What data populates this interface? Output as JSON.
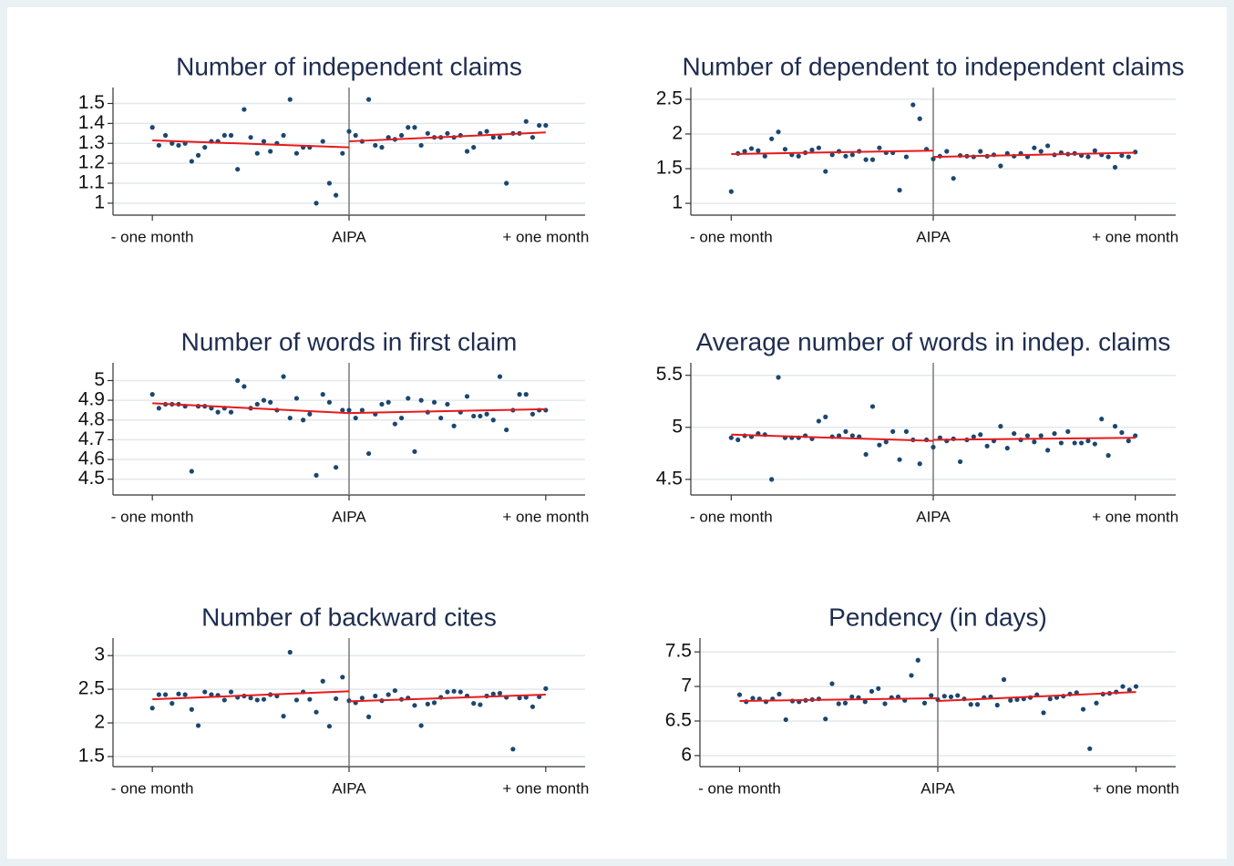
{
  "chart_data": [
    {
      "type": "scatter",
      "title": "Number of independent claims",
      "x": [
        -30,
        -29,
        -28,
        -27,
        -26,
        -25,
        -24,
        -23,
        -22,
        -21,
        -20,
        -19,
        -18,
        -17,
        -16,
        -15,
        -14,
        -13,
        -12,
        -11,
        -10,
        -9,
        -8,
        -7,
        -6,
        -5,
        -4,
        -3,
        -2,
        -1,
        0,
        1,
        2,
        3,
        4,
        5,
        6,
        7,
        8,
        9,
        10,
        11,
        12,
        13,
        14,
        15,
        16,
        17,
        18,
        19,
        20,
        21,
        22,
        23,
        24,
        25,
        26,
        27,
        28,
        29,
        30
      ],
      "values": [
        1.38,
        1.29,
        1.34,
        1.3,
        1.29,
        1.3,
        1.21,
        1.24,
        1.28,
        1.31,
        1.31,
        1.34,
        1.34,
        1.17,
        1.47,
        1.33,
        1.25,
        1.31,
        1.26,
        1.3,
        1.34,
        1.52,
        1.25,
        1.28,
        1.28,
        1.0,
        1.31,
        1.1,
        1.04,
        1.25,
        1.36,
        1.34,
        1.31,
        1.52,
        1.29,
        1.28,
        1.33,
        1.32,
        1.34,
        1.38,
        1.38,
        1.29,
        1.35,
        1.33,
        1.33,
        1.35,
        1.33,
        1.34,
        1.26,
        1.28,
        1.35,
        1.36,
        1.33,
        1.33,
        1.1,
        1.35,
        1.35,
        1.41,
        1.33,
        1.39,
        1.39
      ],
      "fit_lines": [
        {
          "x": [
            -30,
            0
          ],
          "y": [
            1.315,
            1.28
          ]
        },
        {
          "x": [
            0,
            30
          ],
          "y": [
            1.31,
            1.355
          ]
        }
      ],
      "vline": 0,
      "marker_color": "#1a476f",
      "fit_color": "#e8191c",
      "vline_color": "#808080",
      "xlim": [
        -36,
        36
      ],
      "xticks": [
        {
          "value": -30,
          "label": "- one month"
        },
        {
          "value": 0,
          "label": "AIPA"
        },
        {
          "value": 30,
          "label": "+ one month"
        }
      ],
      "ylim": [
        0.94,
        1.58
      ],
      "yticks": [
        1,
        1.1,
        1.2,
        1.3,
        1.4,
        1.5
      ],
      "grid": true
    },
    {
      "type": "scatter",
      "title": "Number of dependent to independent claims",
      "x": [
        -30,
        -29,
        -28,
        -27,
        -26,
        -25,
        -24,
        -23,
        -22,
        -21,
        -20,
        -19,
        -18,
        -17,
        -16,
        -15,
        -14,
        -13,
        -12,
        -11,
        -10,
        -9,
        -8,
        -7,
        -6,
        -5,
        -4,
        -3,
        -2,
        -1,
        0,
        1,
        2,
        3,
        4,
        5,
        6,
        7,
        8,
        9,
        10,
        11,
        12,
        13,
        14,
        15,
        16,
        17,
        18,
        19,
        20,
        21,
        22,
        23,
        24,
        25,
        26,
        27,
        28,
        29,
        30
      ],
      "values": [
        1.17,
        1.72,
        1.75,
        1.79,
        1.76,
        1.68,
        1.93,
        2.03,
        1.78,
        1.7,
        1.68,
        1.73,
        1.77,
        1.8,
        1.46,
        1.7,
        1.75,
        1.68,
        1.7,
        1.75,
        1.63,
        1.63,
        1.8,
        1.73,
        1.73,
        1.19,
        1.67,
        2.42,
        2.22,
        1.78,
        1.64,
        1.68,
        1.75,
        1.36,
        1.69,
        1.68,
        1.67,
        1.75,
        1.68,
        1.7,
        1.54,
        1.72,
        1.68,
        1.72,
        1.67,
        1.8,
        1.75,
        1.83,
        1.7,
        1.73,
        1.71,
        1.72,
        1.69,
        1.67,
        1.76,
        1.7,
        1.67,
        1.52,
        1.69,
        1.67,
        1.74
      ],
      "fit_lines": [
        {
          "x": [
            -30,
            0
          ],
          "y": [
            1.71,
            1.76
          ]
        },
        {
          "x": [
            0,
            30
          ],
          "y": [
            1.67,
            1.73
          ]
        }
      ],
      "vline": 0,
      "marker_color": "#1a476f",
      "fit_color": "#e8191c",
      "vline_color": "#808080",
      "xlim": [
        -36,
        36
      ],
      "xticks": [
        {
          "value": -30,
          "label": "- one month"
        },
        {
          "value": 0,
          "label": "AIPA"
        },
        {
          "value": 30,
          "label": "+ one month"
        }
      ],
      "ylim": [
        0.83,
        2.67
      ],
      "yticks": [
        1,
        1.5,
        2,
        2.5
      ],
      "grid": true
    },
    {
      "type": "scatter",
      "title": "Number of words in first claim",
      "x": [
        -30,
        -29,
        -28,
        -27,
        -26,
        -25,
        -24,
        -23,
        -22,
        -21,
        -20,
        -19,
        -18,
        -17,
        -16,
        -15,
        -14,
        -13,
        -12,
        -11,
        -10,
        -9,
        -8,
        -7,
        -6,
        -5,
        -4,
        -3,
        -2,
        -1,
        0,
        1,
        2,
        3,
        4,
        5,
        6,
        7,
        8,
        9,
        10,
        11,
        12,
        13,
        14,
        15,
        16,
        17,
        18,
        19,
        20,
        21,
        22,
        23,
        24,
        25,
        26,
        27,
        28,
        29,
        30
      ],
      "values": [
        4.93,
        4.86,
        4.88,
        4.88,
        4.88,
        4.87,
        4.54,
        4.87,
        4.87,
        4.86,
        4.84,
        4.86,
        4.84,
        5.0,
        4.97,
        4.86,
        4.88,
        4.9,
        4.89,
        4.85,
        5.02,
        4.81,
        4.91,
        4.8,
        4.83,
        4.52,
        4.93,
        4.89,
        4.56,
        4.85,
        4.85,
        4.81,
        4.85,
        4.63,
        4.83,
        4.88,
        4.89,
        4.78,
        4.81,
        4.91,
        4.64,
        4.9,
        4.84,
        4.89,
        4.81,
        4.88,
        4.77,
        4.84,
        4.92,
        4.82,
        4.82,
        4.83,
        4.8,
        5.02,
        4.75,
        4.85,
        4.93,
        4.93,
        4.83,
        4.85,
        4.85
      ],
      "fit_lines": [
        {
          "x": [
            -30,
            0
          ],
          "y": [
            4.885,
            4.835
          ]
        },
        {
          "x": [
            0,
            30
          ],
          "y": [
            4.835,
            4.855
          ]
        }
      ],
      "vline": 0,
      "marker_color": "#1a476f",
      "fit_color": "#e8191c",
      "vline_color": "#808080",
      "xlim": [
        -36,
        36
      ],
      "xticks": [
        {
          "value": -30,
          "label": "- one month"
        },
        {
          "value": 0,
          "label": "AIPA"
        },
        {
          "value": 30,
          "label": "+ one month"
        }
      ],
      "ylim": [
        4.42,
        5.09
      ],
      "yticks": [
        4.5,
        4.6,
        4.7,
        4.8,
        4.9,
        5
      ],
      "grid": true
    },
    {
      "type": "scatter",
      "title": "Average number of words in indep. claims",
      "x": [
        -30,
        -29,
        -28,
        -27,
        -26,
        -25,
        -24,
        -23,
        -22,
        -21,
        -20,
        -19,
        -18,
        -17,
        -16,
        -15,
        -14,
        -13,
        -12,
        -11,
        -10,
        -9,
        -8,
        -7,
        -6,
        -5,
        -4,
        -3,
        -2,
        -1,
        0,
        1,
        2,
        3,
        4,
        5,
        6,
        7,
        8,
        9,
        10,
        11,
        12,
        13,
        14,
        15,
        16,
        17,
        18,
        19,
        20,
        21,
        22,
        23,
        24,
        25,
        26,
        27,
        28,
        29,
        30
      ],
      "values": [
        4.9,
        4.88,
        4.92,
        4.91,
        4.94,
        4.93,
        4.5,
        5.48,
        4.9,
        4.9,
        4.9,
        4.92,
        4.89,
        5.06,
        5.1,
        4.91,
        4.92,
        4.96,
        4.92,
        4.91,
        4.74,
        5.2,
        4.83,
        4.86,
        4.96,
        4.69,
        4.96,
        4.88,
        4.65,
        4.88,
        4.81,
        4.9,
        4.87,
        4.89,
        4.67,
        4.88,
        4.91,
        4.93,
        4.82,
        4.87,
        5.01,
        4.8,
        4.94,
        4.88,
        4.92,
        4.86,
        4.92,
        4.78,
        4.94,
        4.85,
        4.96,
        4.85,
        4.85,
        4.87,
        4.84,
        5.08,
        4.73,
        5.01,
        4.95,
        4.87,
        4.92
      ],
      "fit_lines": [
        {
          "x": [
            -30,
            0
          ],
          "y": [
            4.93,
            4.87
          ]
        },
        {
          "x": [
            0,
            30
          ],
          "y": [
            4.88,
            4.9
          ]
        }
      ],
      "vline": 0,
      "marker_color": "#1a476f",
      "fit_color": "#e8191c",
      "vline_color": "#808080",
      "xlim": [
        -36,
        36
      ],
      "xticks": [
        {
          "value": -30,
          "label": "- one month"
        },
        {
          "value": 0,
          "label": "AIPA"
        },
        {
          "value": 30,
          "label": "+ one month"
        }
      ],
      "ylim": [
        4.35,
        5.62
      ],
      "yticks": [
        4.5,
        5,
        5.5
      ],
      "grid": true
    },
    {
      "type": "scatter",
      "title": "Number of backward cites",
      "x": [
        -30,
        -29,
        -28,
        -27,
        -26,
        -25,
        -24,
        -23,
        -22,
        -21,
        -20,
        -19,
        -18,
        -17,
        -16,
        -15,
        -14,
        -13,
        -12,
        -11,
        -10,
        -9,
        -8,
        -7,
        -6,
        -5,
        -4,
        -3,
        -2,
        -1,
        0,
        1,
        2,
        3,
        4,
        5,
        6,
        7,
        8,
        9,
        10,
        11,
        12,
        13,
        14,
        15,
        16,
        17,
        18,
        19,
        20,
        21,
        22,
        23,
        24,
        25,
        26,
        27,
        28,
        29,
        30
      ],
      "values": [
        2.22,
        2.42,
        2.42,
        2.29,
        2.43,
        2.42,
        2.2,
        1.96,
        2.46,
        2.42,
        2.41,
        2.34,
        2.46,
        2.38,
        2.4,
        2.37,
        2.34,
        2.35,
        2.42,
        2.4,
        2.1,
        3.05,
        2.34,
        2.46,
        2.35,
        2.16,
        2.62,
        1.95,
        2.36,
        2.68,
        2.33,
        2.3,
        2.37,
        2.09,
        2.4,
        2.33,
        2.42,
        2.48,
        2.35,
        2.37,
        2.26,
        1.96,
        2.28,
        2.3,
        2.38,
        2.46,
        2.47,
        2.46,
        2.4,
        2.29,
        2.27,
        2.4,
        2.43,
        2.44,
        2.38,
        1.61,
        2.37,
        2.38,
        2.24,
        2.39,
        2.51
      ],
      "fit_lines": [
        {
          "x": [
            -30,
            0
          ],
          "y": [
            2.35,
            2.47
          ]
        },
        {
          "x": [
            0,
            30
          ],
          "y": [
            2.32,
            2.42
          ]
        }
      ],
      "vline": 0,
      "marker_color": "#1a476f",
      "fit_color": "#e8191c",
      "vline_color": "#808080",
      "xlim": [
        -36,
        36
      ],
      "xticks": [
        {
          "value": -30,
          "label": "- one month"
        },
        {
          "value": 0,
          "label": "AIPA"
        },
        {
          "value": 30,
          "label": "+ one month"
        }
      ],
      "ylim": [
        1.35,
        3.26
      ],
      "yticks": [
        1.5,
        2,
        2.5,
        3
      ],
      "grid": true
    },
    {
      "type": "scatter",
      "title": "Pendency (in days)",
      "x": [
        -30,
        -29,
        -28,
        -27,
        -26,
        -25,
        -24,
        -23,
        -22,
        -21,
        -20,
        -19,
        -18,
        -17,
        -16,
        -15,
        -14,
        -13,
        -12,
        -11,
        -10,
        -9,
        -8,
        -7,
        -6,
        -5,
        -4,
        -3,
        -2,
        -1,
        0,
        1,
        2,
        3,
        4,
        5,
        6,
        7,
        8,
        9,
        10,
        11,
        12,
        13,
        14,
        15,
        16,
        17,
        18,
        19,
        20,
        21,
        22,
        23,
        24,
        25,
        26,
        27,
        28,
        29,
        30
      ],
      "values": [
        6.88,
        6.78,
        6.83,
        6.82,
        6.78,
        6.82,
        6.89,
        6.52,
        6.79,
        6.78,
        6.8,
        6.81,
        6.82,
        6.53,
        7.04,
        6.75,
        6.76,
        6.85,
        6.84,
        6.78,
        6.93,
        6.97,
        6.75,
        6.84,
        6.85,
        6.8,
        7.16,
        7.38,
        6.76,
        6.87,
        6.81,
        6.86,
        6.85,
        6.87,
        6.82,
        6.74,
        6.74,
        6.84,
        6.85,
        6.73,
        7.1,
        6.8,
        6.81,
        6.82,
        6.84,
        6.88,
        6.62,
        6.82,
        6.84,
        6.86,
        6.89,
        6.91,
        6.67,
        6.1,
        6.76,
        6.89,
        6.9,
        6.92,
        7.0,
        6.95,
        7.0
      ],
      "fit_lines": [
        {
          "x": [
            -30,
            0
          ],
          "y": [
            6.79,
            6.83
          ]
        },
        {
          "x": [
            0,
            30
          ],
          "y": [
            6.79,
            6.92
          ]
        }
      ],
      "vline": 0,
      "marker_color": "#1a476f",
      "fit_color": "#e8191c",
      "vline_color": "#808080",
      "xlim": [
        -36,
        36
      ],
      "xticks": [
        {
          "value": -30,
          "label": "- one month"
        },
        {
          "value": 0,
          "label": "AIPA"
        },
        {
          "value": 30,
          "label": "+ one month"
        }
      ],
      "ylim": [
        5.84,
        7.7
      ],
      "yticks": [
        6,
        6.5,
        7,
        7.5
      ],
      "grid": true
    }
  ]
}
